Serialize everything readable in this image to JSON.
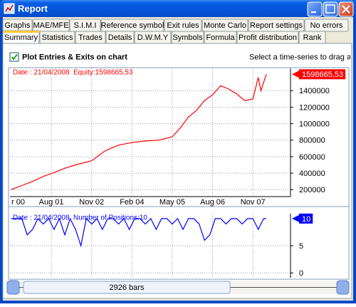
{
  "window": {
    "title": "Report"
  },
  "tabs": {
    "row1": [
      "Graphs",
      "MAE/MFE",
      "S.I.M.I",
      "Reference symbol",
      "Exit rules",
      "Monte Carlo",
      "Report settings",
      "No errors"
    ],
    "row2": [
      "Summary",
      "Statistics",
      "Trades",
      "Details",
      "D.W.M.Y",
      "Symbols",
      "Formula",
      "Profit distribution",
      "Rank"
    ]
  },
  "checkbox": {
    "label": "Plot Entries & Exits on chart",
    "checked": true
  },
  "hint": "Select a time-series to drag and",
  "chart_data": [
    {
      "type": "line",
      "date_label": "Date : 21/04/2008",
      "equity_label": "Equity:1598665,53",
      "end_label": "1598665,53",
      "color": "#ff0000",
      "x": [
        2,
        6,
        10,
        14,
        17,
        22,
        26,
        32,
        37,
        42,
        47,
        52,
        57,
        62,
        65,
        68,
        71,
        74,
        77,
        80,
        83,
        86,
        89,
        92,
        94,
        95,
        97
      ],
      "values": [
        200000,
        250000,
        300000,
        360000,
        395000,
        460000,
        500000,
        550000,
        670000,
        740000,
        770000,
        790000,
        800000,
        840000,
        950000,
        1080000,
        1160000,
        1280000,
        1350000,
        1460000,
        1420000,
        1360000,
        1280000,
        1300000,
        1560000,
        1400000,
        1598665.53
      ],
      "xlim": [
        1.6,
        106
      ],
      "xticks": [
        {
          "value": 0,
          "label": "r 00"
        },
        {
          "value": 17,
          "label": "Aug 01"
        },
        {
          "value": 32,
          "label": "Nov 02"
        },
        {
          "value": 47,
          "label": "Feb 04"
        },
        {
          "value": 62,
          "label": "May 05"
        },
        {
          "value": 77,
          "label": "Aug 06"
        },
        {
          "value": 92,
          "label": "Nov 07"
        }
      ],
      "ylim": [
        116000,
        1670000
      ],
      "yticks": [
        200000,
        400000,
        600000,
        800000,
        1000000,
        1200000,
        1400000
      ],
      "grid": true
    },
    {
      "type": "line",
      "date_label": "Date : 21/04/2008",
      "positions_label": "Number of Positions:10",
      "color": "#0000ff",
      "x": [
        2,
        4,
        6,
        8,
        10,
        12,
        14,
        16,
        18,
        20,
        22,
        24,
        26,
        28,
        30,
        32,
        34,
        36,
        38,
        40,
        42,
        44,
        46,
        48,
        50,
        52,
        54,
        56,
        58,
        60,
        62,
        64,
        66,
        68,
        70,
        72,
        74,
        76,
        78,
        80,
        82,
        84,
        86,
        88,
        90,
        92,
        94,
        96,
        97
      ],
      "values": [
        10,
        10,
        10,
        7,
        8,
        10,
        9,
        10,
        8,
        10,
        7,
        10,
        8,
        5,
        10,
        9,
        10,
        8,
        10,
        10,
        9,
        10,
        8,
        10,
        10,
        9,
        10,
        8,
        10,
        10,
        9,
        10,
        8,
        10,
        10,
        9,
        6,
        7,
        10,
        10,
        9,
        10,
        10,
        9,
        10,
        10,
        8,
        10,
        10
      ],
      "xlim": [
        1.6,
        106
      ],
      "ylim": [
        -0.9,
        10.9
      ],
      "yticks": [
        0,
        5
      ],
      "grid": true
    }
  ],
  "scrollbar": {
    "label": "2926 bars"
  }
}
